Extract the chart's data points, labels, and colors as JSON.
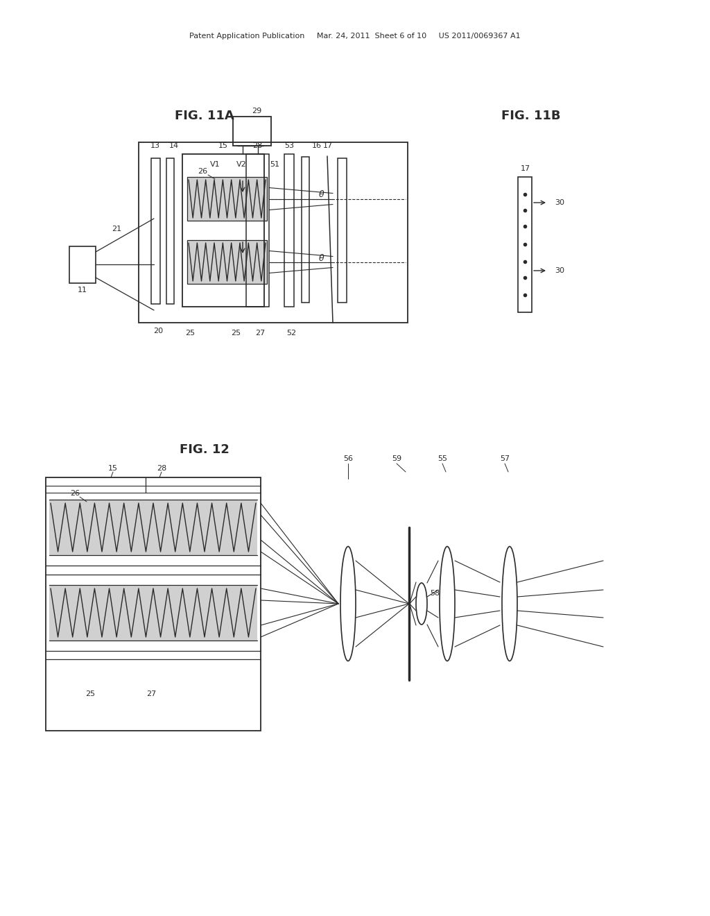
{
  "bg_color": "#ffffff",
  "lc": "#2a2a2a",
  "header": "Patent Application Publication     Mar. 24, 2011  Sheet 6 of 10     US 2011/0069367 A1",
  "title_11a": "FIG. 11A",
  "title_11b": "FIG. 11B",
  "title_12": "FIG. 12"
}
